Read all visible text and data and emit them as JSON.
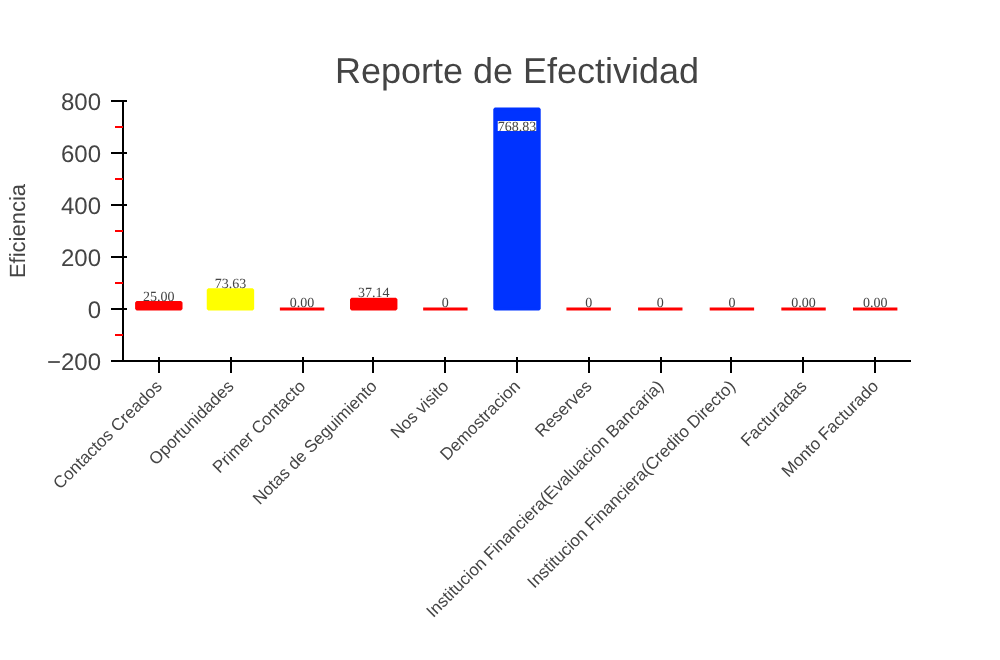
{
  "chart_data": {
    "type": "bar",
    "title": "Reporte de Efectividad",
    "ylabel": "Eficiencia",
    "categories": [
      "Contactos Creados",
      "Oportunidades",
      "Primer Contacto",
      "Notas de Seguimiento",
      "Nos visito",
      "Demostracion",
      "Reserves",
      "Institucion Financiera(Evaluacion Bancaria)",
      "Institucion Financiera(Credito Directo)",
      "Facturadas",
      "Monto Facturado"
    ],
    "values": [
      25,
      73.63,
      0,
      37.14,
      0,
      768.83,
      0,
      0,
      0,
      0,
      0
    ],
    "value_labels": [
      "25.00",
      "73.63",
      "0.00",
      "37.14",
      "0",
      "768.83",
      "0",
      "0",
      "0",
      "0.00",
      "0.00"
    ],
    "colors": [
      "#ff0000",
      "#ffff00",
      "#ff0000",
      "#ff0000",
      "#ff0000",
      "#0033ff",
      "#ff0000",
      "#ff0000",
      "#ff0000",
      "#ff0000",
      "#ff0000"
    ],
    "ylim": [
      -200,
      800
    ],
    "yticks": [
      -200,
      0,
      200,
      400,
      600,
      800
    ],
    "grid": false
  }
}
